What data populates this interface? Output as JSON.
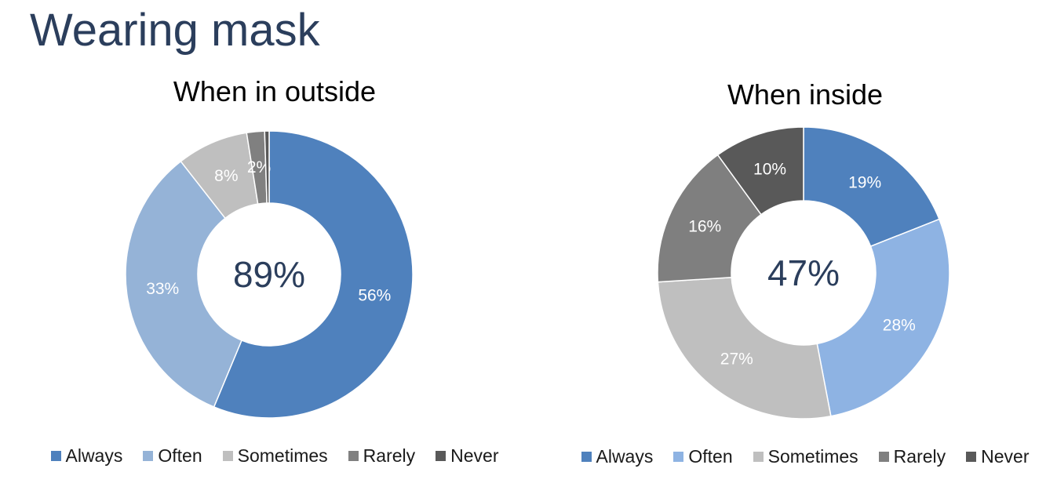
{
  "page": {
    "title": "Wearing mask"
  },
  "chart_data": [
    {
      "type": "donut",
      "title": "When in outside",
      "center_label": "89%",
      "categories": [
        "Always",
        "Often",
        "Sometimes",
        "Rarely",
        "Never"
      ],
      "values": [
        56,
        33,
        8,
        2,
        0.5
      ],
      "value_labels": [
        "56%",
        "33%",
        "8%",
        "2%",
        ""
      ],
      "colors": [
        "#4f81bd",
        "#95b3d7",
        "#bfbfbf",
        "#808080",
        "#595959"
      ],
      "legend": "bottom"
    },
    {
      "type": "donut",
      "title": "When inside",
      "center_label": "47%",
      "categories": [
        "Always",
        "Often",
        "Sometimes",
        "Rarely",
        "Never"
      ],
      "values": [
        19,
        28,
        27,
        16,
        10
      ],
      "value_labels": [
        "19%",
        "28%",
        "27%",
        "16%",
        "10%"
      ],
      "colors": [
        "#4f81bd",
        "#8eb3e3",
        "#bfbfbf",
        "#7f7f7f",
        "#595959"
      ],
      "legend": "bottom"
    }
  ]
}
